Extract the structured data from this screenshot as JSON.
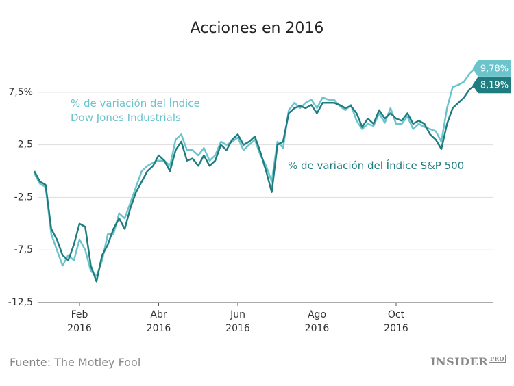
{
  "chart_data": {
    "type": "line",
    "title": "Acciones en 2016",
    "categories": [
      null,
      null,
      null,
      null,
      null,
      null,
      null,
      null,
      "Feb 2016",
      null,
      null,
      null,
      null,
      null,
      null,
      null,
      null,
      null,
      null,
      null,
      null,
      null,
      "Abr 2016",
      null,
      null,
      null,
      null,
      null,
      null,
      null,
      null,
      null,
      null,
      null,
      null,
      null,
      "Jun 2016",
      null,
      null,
      null,
      null,
      null,
      null,
      null,
      null,
      null,
      null,
      null,
      null,
      null,
      "Ago 2016",
      null,
      null,
      null,
      null,
      null,
      null,
      null,
      null,
      null,
      null,
      null,
      null,
      null,
      "Oct 2016",
      null,
      null,
      null,
      null,
      null,
      null,
      null,
      null,
      null,
      null,
      null,
      null,
      null,
      null
    ],
    "series": [
      {
        "name": "% de variación del Índice Dow Jones Industrials",
        "color": "#6bc3cb",
        "values": [
          -0.2,
          -1.2,
          -1.5,
          -6.0,
          -7.5,
          -9.0,
          -8.0,
          -8.5,
          -6.5,
          -7.5,
          -9.5,
          -10.0,
          -8.5,
          -6.0,
          -6.0,
          -4.0,
          -4.5,
          -3.0,
          -1.5,
          0.0,
          0.5,
          0.8,
          1.0,
          1.0,
          0.5,
          3.0,
          3.5,
          2.0,
          2.0,
          1.5,
          2.2,
          1.0,
          1.5,
          2.8,
          2.5,
          2.8,
          3.2,
          2.0,
          2.5,
          3.0,
          1.5,
          0.5,
          -1.0,
          2.8,
          2.2,
          5.8,
          6.5,
          6.0,
          6.5,
          6.8,
          6.0,
          7.0,
          6.8,
          6.8,
          6.2,
          5.8,
          6.3,
          4.8,
          4.0,
          4.5,
          4.3,
          5.5,
          4.6,
          6.0,
          4.5,
          4.5,
          5.2,
          4.0,
          4.5,
          4.2,
          4.0,
          3.8,
          2.8,
          6.0,
          8.0,
          8.2,
          8.5,
          9.3,
          9.78
        ],
        "value_labels": [
          null,
          null,
          null,
          null,
          null,
          null,
          null,
          null,
          null,
          null,
          null,
          null,
          null,
          null,
          null,
          null,
          null,
          null,
          null,
          null,
          null,
          null,
          null,
          null,
          null,
          null,
          null,
          null,
          null,
          null,
          null,
          null,
          null,
          null,
          null,
          null,
          null,
          null,
          null,
          null,
          null,
          null,
          null,
          null,
          null,
          null,
          null,
          null,
          null,
          null,
          null,
          null,
          null,
          null,
          null,
          null,
          null,
          null,
          null,
          null,
          null,
          null,
          null,
          null,
          null,
          null,
          null,
          null,
          null,
          null,
          null,
          null,
          null,
          null,
          null,
          null,
          null,
          null,
          "9,78%"
        ]
      },
      {
        "name": "% de variación del Índice S&P 500",
        "color": "#1f7d80",
        "values": [
          0.0,
          -1.0,
          -1.3,
          -5.5,
          -6.5,
          -8.0,
          -8.5,
          -7.0,
          -5.0,
          -5.3,
          -9.0,
          -10.5,
          -8.0,
          -7.0,
          -5.5,
          -4.5,
          -5.5,
          -3.5,
          -2.0,
          -1.0,
          0.0,
          0.5,
          1.5,
          1.0,
          0.0,
          2.0,
          2.8,
          1.0,
          1.2,
          0.5,
          1.5,
          0.5,
          1.0,
          2.5,
          2.0,
          3.0,
          3.5,
          2.5,
          2.8,
          3.3,
          1.8,
          0.0,
          -2.0,
          2.5,
          2.8,
          5.5,
          6.0,
          6.2,
          6.0,
          6.3,
          5.5,
          6.5,
          6.5,
          6.5,
          6.3,
          6.0,
          6.2,
          5.5,
          4.2,
          5.0,
          4.5,
          5.8,
          5.0,
          5.5,
          5.0,
          4.8,
          5.5,
          4.5,
          4.8,
          4.5,
          3.5,
          3.0,
          2.1,
          4.5,
          6.0,
          6.5,
          7.0,
          7.8,
          8.19
        ],
        "value_labels": [
          null,
          null,
          null,
          null,
          null,
          null,
          null,
          null,
          null,
          null,
          null,
          null,
          null,
          null,
          null,
          null,
          null,
          null,
          null,
          null,
          null,
          null,
          null,
          null,
          null,
          null,
          null,
          null,
          null,
          null,
          null,
          null,
          null,
          null,
          null,
          null,
          null,
          null,
          null,
          null,
          null,
          null,
          null,
          null,
          null,
          null,
          null,
          null,
          null,
          null,
          null,
          null,
          null,
          null,
          null,
          null,
          null,
          null,
          null,
          null,
          null,
          null,
          null,
          null,
          null,
          null,
          null,
          null,
          null,
          null,
          null,
          null,
          null,
          null,
          null,
          null,
          null,
          null,
          "8,19%"
        ]
      }
    ],
    "ylim": [
      -12.5,
      11.5
    ],
    "yticks": [
      {
        "value": -12.5,
        "label": "-12,5"
      },
      {
        "value": -7.5,
        "label": "-7,5"
      },
      {
        "value": -2.5,
        "label": "-2,5"
      },
      {
        "value": 2.5,
        "label": "2,5"
      },
      {
        "value": 7.5,
        "label": "7,5%"
      }
    ],
    "grid": true,
    "source": "Fuente: The Motley Fool",
    "logo": "INSIDER",
    "logo_suffix": "PRO"
  }
}
